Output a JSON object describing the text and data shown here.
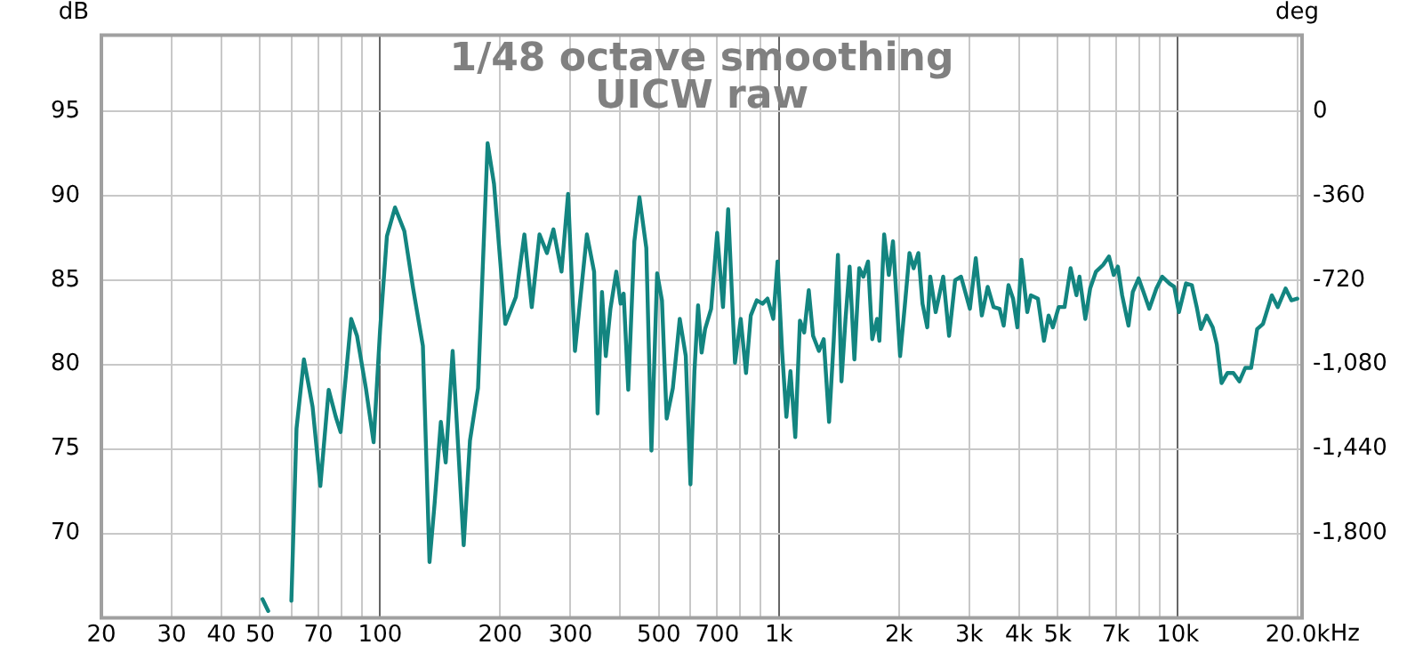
{
  "chart_data": {
    "type": "line",
    "title": "1/48 octave smoothing",
    "subtitle": "UICW raw",
    "ylabel": "dB",
    "y2label": "deg",
    "color": "#138580",
    "log": "x",
    "grid": true,
    "legend": false,
    "xlim": [
      20,
      20500
    ],
    "ylim": [
      65,
      99.5
    ],
    "y2lim": [
      -2160,
      324
    ],
    "xticks": [
      20,
      30,
      40,
      50,
      {
        "value": 60,
        "label": null
      },
      70,
      {
        "value": 80,
        "label": null
      },
      {
        "value": 90,
        "label": null
      },
      100,
      200,
      300,
      {
        "value": 400,
        "label": null
      },
      500,
      {
        "value": 600,
        "label": null
      },
      700,
      {
        "value": 800,
        "label": null
      },
      {
        "value": 900,
        "label": null
      },
      {
        "value": 1000,
        "label": "1k"
      },
      {
        "value": 2000,
        "label": "2k"
      },
      {
        "value": 3000,
        "label": "3k"
      },
      {
        "value": 4000,
        "label": "4k"
      },
      {
        "value": 5000,
        "label": "5k"
      },
      {
        "value": 6000,
        "label": null
      },
      {
        "value": 7000,
        "label": "7k"
      },
      {
        "value": 8000,
        "label": null
      },
      {
        "value": 9000,
        "label": null
      },
      {
        "value": 10000,
        "label": "10k"
      },
      {
        "value": 20000,
        "label": "20.0k"
      }
    ],
    "xlabel": "Hz",
    "yticks": [
      70,
      75,
      80,
      85,
      90,
      95
    ],
    "y2ticks": [
      0,
      -360,
      -720,
      {
        "value": -1080,
        "label": "-1,080"
      },
      {
        "value": -1440,
        "label": "-1,440"
      },
      {
        "value": -1800,
        "label": "-1,800"
      }
    ],
    "x": [
      50.7,
      52.4,
      56,
      59.9,
      61.7,
      64.4,
      67.7,
      70.8,
      74.3,
      77.4,
      79.6,
      84.6,
      87.5,
      92.1,
      96.3,
      100,
      104,
      109,
      115,
      121,
      128,
      133,
      137,
      142,
      146,
      152,
      156,
      162,
      168,
      176,
      186,
      193,
      206,
      219,
      230,
      240,
      251,
      262,
      272,
      285,
      296,
      308,
      330,
      344,
      351,
      360,
      368,
      378,
      391,
      401,
      408,
      419,
      434,
      447,
      465,
      479,
      495,
      509,
      523,
      542,
      564,
      584,
      600,
      614,
      627,
      640,
      653,
      676,
      700,
      724,
      746,
      776,
      802,
      827,
      850,
      880,
      910,
      936,
      968,
      992,
      1019,
      1044,
      1069,
      1099,
      1129,
      1157,
      1188,
      1218,
      1260,
      1295,
      1336,
      1372,
      1406,
      1435,
      1469,
      1504,
      1546,
      1590,
      1628,
      1673,
      1714,
      1762,
      1786,
      1836,
      1886,
      1932,
      2013,
      2067,
      2125,
      2176,
      2237,
      2291,
      2355,
      2396,
      2472,
      2582,
      2671,
      2767,
      2862,
      3012,
      3116,
      3227,
      3338,
      3453,
      3575,
      3661,
      3764,
      3865,
      3962,
      4055,
      4195,
      4282,
      4461,
      4620,
      4745,
      4863,
      5030,
      5203,
      5387,
      5573,
      5671,
      5866,
      6031,
      6238,
      6500,
      6724,
      6912,
      7078,
      7255,
      7527,
      7715,
      7980,
      8204,
      8486,
      8841,
      9146,
      9530,
      9800,
      10070,
      10490,
      10850,
      11160,
      11430,
      11820,
      12240,
      12530,
      12880,
      13330,
      13790,
      14280,
      14770,
      15280,
      15820,
      16360,
      17220,
      17820,
      18640,
      19280,
      19950
    ],
    "values": [
      66.1,
      65.4,
      null,
      66.0,
      76.2,
      80.3,
      77.5,
      72.8,
      78.5,
      76.9,
      76.0,
      82.7,
      81.7,
      78.6,
      75.4,
      82.1,
      87.6,
      89.3,
      87.9,
      84.5,
      81.1,
      68.3,
      71.8,
      76.6,
      74.2,
      80.8,
      76.2,
      69.3,
      75.5,
      78.6,
      93.1,
      90.7,
      82.4,
      84.0,
      87.7,
      83.4,
      87.7,
      86.6,
      88.0,
      85.5,
      90.1,
      80.8,
      87.7,
      85.5,
      77.1,
      84.3,
      80.5,
      83.3,
      85.5,
      83.6,
      84.2,
      78.5,
      87.3,
      89.9,
      86.9,
      74.9,
      85.4,
      83.8,
      76.8,
      78.6,
      82.7,
      80.5,
      72.9,
      79.6,
      83.5,
      80.7,
      82.1,
      83.3,
      87.8,
      83.4,
      89.2,
      80.1,
      82.7,
      79.5,
      82.9,
      83.8,
      83.6,
      83.9,
      82.7,
      86.1,
      80.7,
      76.9,
      79.6,
      75.7,
      82.6,
      81.9,
      84.4,
      81.7,
      80.8,
      81.5,
      76.6,
      81.4,
      86.5,
      79.0,
      82.7,
      85.8,
      80.3,
      85.7,
      85.2,
      86.1,
      81.5,
      82.7,
      81.4,
      87.7,
      85.3,
      87.3,
      80.5,
      83.4,
      86.6,
      85.7,
      86.6,
      83.6,
      82.2,
      85.2,
      83.1,
      85.2,
      81.7,
      85.0,
      85.2,
      83.3,
      86.3,
      82.9,
      84.6,
      83.4,
      83.3,
      82.3,
      84.7,
      83.9,
      82.2,
      86.2,
      83.1,
      84.1,
      83.9,
      81.4,
      82.9,
      82.2,
      83.4,
      83.4,
      85.7,
      84.1,
      85.2,
      82.7,
      84.5,
      85.5,
      85.9,
      86.4,
      85.3,
      85.8,
      84.1,
      82.3,
      84.3,
      85.1,
      84.3,
      83.3,
      84.5,
      85.2,
      84.8,
      84.6,
      83.1,
      84.8,
      84.7,
      83.4,
      82.1,
      82.9,
      82.2,
      81.2,
      78.9,
      79.5,
      79.5,
      79.0,
      79.8,
      79.8,
      82.1,
      82.4,
      84.1,
      83.4,
      84.5,
      83.8,
      83.9
    ]
  }
}
